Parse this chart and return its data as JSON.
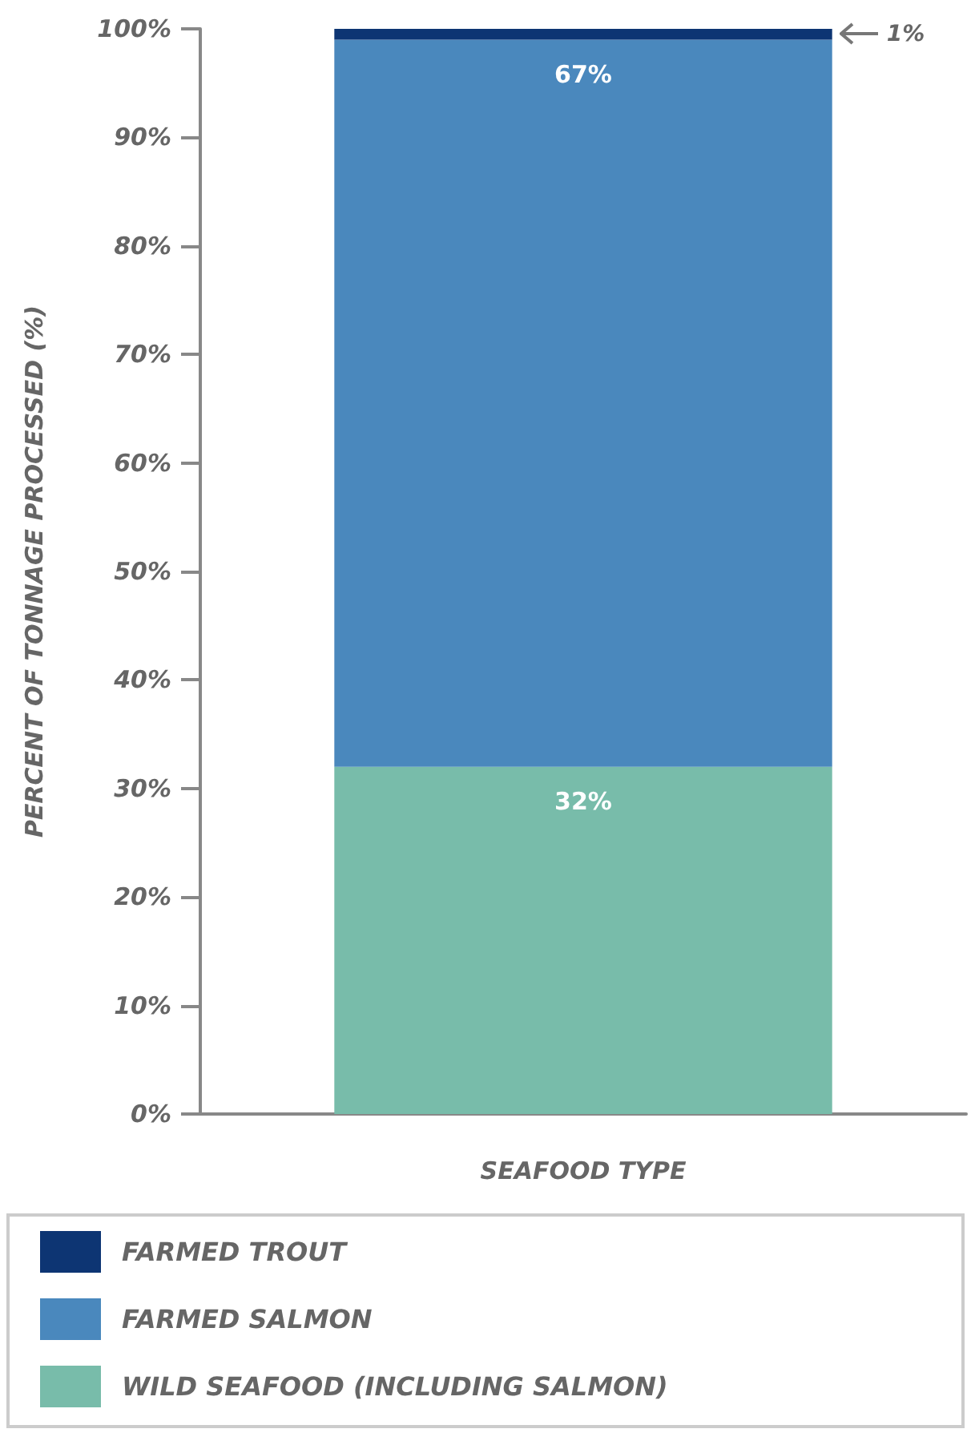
{
  "chart_data": {
    "type": "bar",
    "stacked": true,
    "xlabel": "SEAFOOD TYPE",
    "ylabel": "PERCENT OF TONNAGE PROCESSED (%)",
    "categories": [
      null
    ],
    "series": [
      {
        "name": "WILD SEAFOOD (INCLUDING SALMON)",
        "color": "#78bcaa",
        "values": [
          32
        ],
        "value_labels": [
          "32%"
        ]
      },
      {
        "name": "FARMED SALMON",
        "color": "#4a88bd",
        "values": [
          67
        ],
        "value_labels": [
          "67%"
        ]
      },
      {
        "name": "FARMED TROUT",
        "color": "#0d3573",
        "values": [
          1
        ],
        "value_labels": [
          "1%"
        ]
      }
    ],
    "ylim": [
      0,
      100
    ],
    "yticks": [
      {
        "value": 0,
        "label": "0%"
      },
      {
        "value": 10,
        "label": "10%"
      },
      {
        "value": 20,
        "label": "20%"
      },
      {
        "value": 30,
        "label": "30%"
      },
      {
        "value": 40,
        "label": "40%"
      },
      {
        "value": 50,
        "label": "50%"
      },
      {
        "value": 60,
        "label": "60%"
      },
      {
        "value": 70,
        "label": "70%"
      },
      {
        "value": 80,
        "label": "80%"
      },
      {
        "value": 90,
        "label": "90%"
      },
      {
        "value": 100,
        "label": "100%"
      }
    ],
    "grid": false,
    "legend": "bottom"
  }
}
